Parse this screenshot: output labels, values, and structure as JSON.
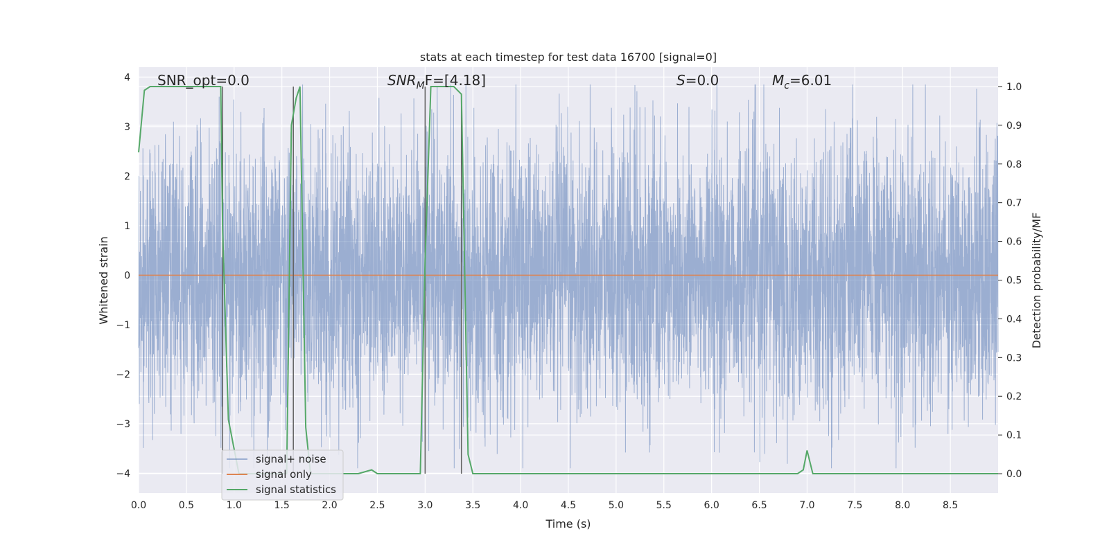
{
  "chart_data": {
    "type": "line",
    "title": "stats at each timestep for test data 16700 [signal=0]",
    "xlabel": "Time (s)",
    "ylabel_left": "Whitened strain",
    "ylabel_right": "Detection probability/MF",
    "xlim": [
      0,
      9.0
    ],
    "ylim_left": [
      -4.4,
      4.2
    ],
    "ylim_right": [
      -0.05,
      1.05
    ],
    "xticks": [
      0.0,
      0.5,
      1.0,
      1.5,
      2.0,
      2.5,
      3.0,
      3.5,
      4.0,
      4.5,
      5.0,
      5.5,
      6.0,
      6.5,
      7.0,
      7.5,
      8.0,
      8.5
    ],
    "xtick_labels": [
      "0.0",
      "0.5",
      "1.0",
      "1.5",
      "2.0",
      "2.5",
      "3.0",
      "3.5",
      "4.0",
      "4.5",
      "5.0",
      "5.5",
      "6.0",
      "6.5",
      "7.0",
      "7.5",
      "8.0",
      "8.5"
    ],
    "yticks_left": [
      4,
      3,
      2,
      1,
      0,
      -1,
      -2,
      -3,
      -4
    ],
    "ytick_labels_left": [
      "4",
      "3",
      "2",
      "1",
      "0",
      "−1",
      "−2",
      "−3",
      "−4"
    ],
    "yticks_right": [
      1.0,
      0.9,
      0.8,
      0.7,
      0.6,
      0.5,
      0.4,
      0.3,
      0.2,
      0.1,
      0.0
    ],
    "ytick_labels_right": [
      "1.0",
      "0.9",
      "0.8",
      "0.7",
      "0.6",
      "0.5",
      "0.4",
      "0.3",
      "0.2",
      "0.1",
      "0.0"
    ],
    "grid": true,
    "legend_placement": "lower-left",
    "annotations": {
      "snr_opt": "SNR_opt=0.0",
      "snr_mf_main": "SNR",
      "snr_mf_sub": "M",
      "snr_mf_rest": "F=[4.18]",
      "s_main": "S",
      "s_rest": "=0.0",
      "mc_main": "M",
      "mc_sub": "c",
      "mc_rest": "=6.01"
    },
    "series": [
      {
        "name": "signal+ noise",
        "axis": "left",
        "color": "#4c72b0",
        "alpha": 0.5,
        "description_range": [
          -3.9,
          3.85
        ]
      },
      {
        "name": "signal only",
        "axis": "left",
        "color": "#dd8452",
        "x": [
          0.0,
          9.0
        ],
        "y": [
          0.0,
          0.0
        ]
      },
      {
        "name": "signal statistics",
        "axis": "right",
        "color": "#55a868",
        "x": [
          0.0,
          0.06,
          0.12,
          0.2,
          0.86,
          0.88,
          0.94,
          1.05,
          1.55,
          1.6,
          1.65,
          1.69,
          1.75,
          1.8,
          2.3,
          2.44,
          2.5,
          2.95,
          3.0,
          3.06,
          3.3,
          3.38,
          3.45,
          3.5,
          6.9,
          6.96,
          7.0,
          7.06,
          7.15,
          9.0
        ],
        "y": [
          0.83,
          0.99,
          1.0,
          1.0,
          1.0,
          0.63,
          0.14,
          0.0,
          0.0,
          0.9,
          0.97,
          1.0,
          0.12,
          0.0,
          0.0,
          0.01,
          0.0,
          0.0,
          0.55,
          1.0,
          1.0,
          0.98,
          0.05,
          0.0,
          0.0,
          0.01,
          0.06,
          0.0,
          0.0,
          0.0
        ]
      }
    ],
    "markers": {
      "color": "#606060",
      "x": [
        0.88,
        1.62,
        3.0,
        3.38
      ],
      "ytop": [
        1.0,
        1.0,
        1.0,
        0.97
      ]
    }
  }
}
